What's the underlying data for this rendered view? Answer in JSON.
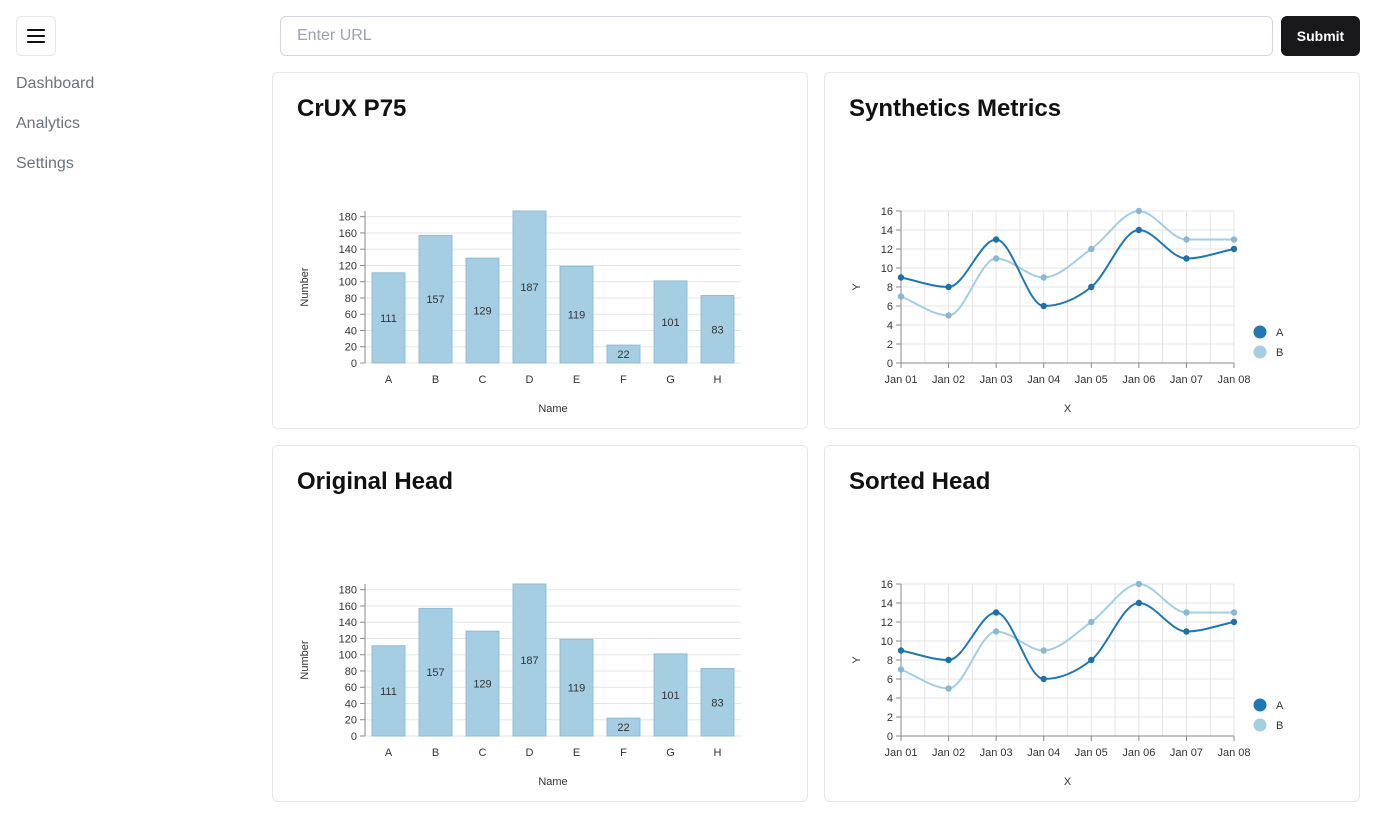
{
  "sidebar": {
    "menu_icon": "hamburger-icon",
    "items": [
      {
        "label": "Dashboard"
      },
      {
        "label": "Analytics"
      },
      {
        "label": "Settings"
      }
    ]
  },
  "header": {
    "url_placeholder": "Enter URL",
    "url_value": "",
    "submit_label": "Submit"
  },
  "cards": [
    {
      "title": "CrUX P75"
    },
    {
      "title": "Synthetics Metrics"
    },
    {
      "title": "Original Head"
    },
    {
      "title": "Sorted Head"
    }
  ],
  "colors": {
    "bar": "#a6cee3",
    "series_a": "#1f78b4",
    "series_b": "#a6cee3"
  },
  "chart_data": [
    {
      "type": "bar",
      "categories": [
        "A",
        "B",
        "C",
        "D",
        "E",
        "F",
        "G",
        "H"
      ],
      "values": [
        111,
        157,
        129,
        187,
        119,
        22,
        101,
        83
      ],
      "xlabel": "Name",
      "ylabel": "Number",
      "ylim": [
        0,
        187
      ],
      "yticks": [
        0,
        20,
        40,
        60,
        80,
        100,
        120,
        140,
        160,
        180
      ],
      "grid": true
    },
    {
      "type": "line",
      "x": [
        "Jan 01",
        "Jan 02",
        "Jan 03",
        "Jan 04",
        "Jan 05",
        "Jan 06",
        "Jan 07",
        "Jan 08"
      ],
      "series": [
        {
          "name": "A",
          "values": [
            9,
            8,
            13,
            6,
            8,
            14,
            11,
            12
          ]
        },
        {
          "name": "B",
          "values": [
            7,
            5,
            11,
            9,
            12,
            16,
            13,
            13
          ]
        }
      ],
      "xlabel": "X",
      "ylabel": "Y",
      "ylim": [
        0,
        16
      ],
      "yticks": [
        0,
        2,
        4,
        6,
        8,
        10,
        12,
        14,
        16
      ],
      "grid": true,
      "legend": "right"
    },
    {
      "type": "bar",
      "categories": [
        "A",
        "B",
        "C",
        "D",
        "E",
        "F",
        "G",
        "H"
      ],
      "values": [
        111,
        157,
        129,
        187,
        119,
        22,
        101,
        83
      ],
      "xlabel": "Name",
      "ylabel": "Number",
      "ylim": [
        0,
        187
      ],
      "yticks": [
        0,
        20,
        40,
        60,
        80,
        100,
        120,
        140,
        160,
        180
      ],
      "grid": true
    },
    {
      "type": "line",
      "x": [
        "Jan 01",
        "Jan 02",
        "Jan 03",
        "Jan 04",
        "Jan 05",
        "Jan 06",
        "Jan 07",
        "Jan 08"
      ],
      "series": [
        {
          "name": "A",
          "values": [
            9,
            8,
            13,
            6,
            8,
            14,
            11,
            12
          ]
        },
        {
          "name": "B",
          "values": [
            7,
            5,
            11,
            9,
            12,
            16,
            13,
            13
          ]
        }
      ],
      "xlabel": "X",
      "ylabel": "Y",
      "ylim": [
        0,
        16
      ],
      "yticks": [
        0,
        2,
        4,
        6,
        8,
        10,
        12,
        14,
        16
      ],
      "grid": true,
      "legend": "right"
    }
  ]
}
